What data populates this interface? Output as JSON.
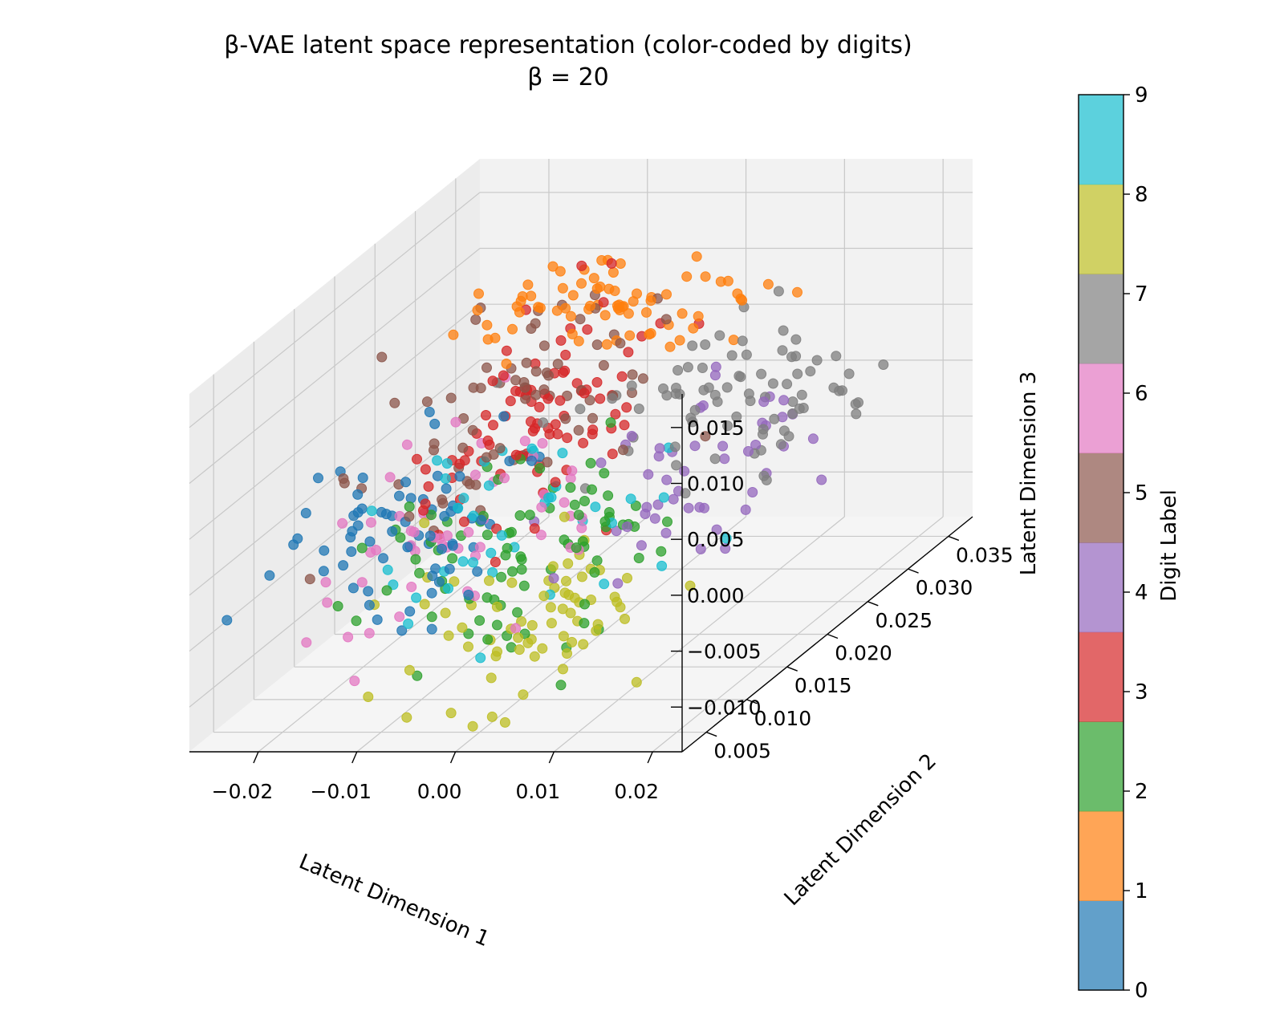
{
  "chart_data": {
    "type": "scatter",
    "projection": "3d",
    "title": "β-VAE latent space representation (color-coded by digits)",
    "subtitle": "β = 20",
    "xlabel": "Latent Dimension 1",
    "ylabel": "Latent Dimension 2",
    "zlabel": "Latent Dimension 3",
    "xlim": [
      -0.027,
      0.023
    ],
    "ylim": [
      0.002,
      0.038
    ],
    "zlim": [
      -0.014,
      0.018
    ],
    "x_ticks": [
      -0.02,
      -0.01,
      0.0,
      0.01,
      0.02
    ],
    "x_tick_labels": [
      "−0.02",
      "−0.01",
      "0.00",
      "0.01",
      "0.02"
    ],
    "y_ticks": [
      0.005,
      0.01,
      0.015,
      0.02,
      0.025,
      0.03,
      0.035
    ],
    "y_tick_labels": [
      "0.005",
      "0.010",
      "0.015",
      "0.020",
      "0.025",
      "0.030",
      "0.035"
    ],
    "z_ticks": [
      -0.01,
      -0.005,
      0.0,
      0.005,
      0.01,
      0.015
    ],
    "z_tick_labels": [
      "−0.010",
      "−0.005",
      "0.000",
      "0.005",
      "0.010",
      "0.015"
    ],
    "grid": true,
    "colorbar": {
      "label": "Digit Label",
      "range": [
        0,
        9
      ],
      "ticks": [
        0,
        1,
        2,
        3,
        4,
        5,
        6,
        7,
        8,
        9
      ],
      "tick_labels": [
        "0",
        "1",
        "2",
        "3",
        "4",
        "5",
        "6",
        "7",
        "8",
        "9"
      ],
      "colors": [
        "#1f77b4",
        "#ff7f0e",
        "#2ca02c",
        "#d62728",
        "#9467bd",
        "#8c564b",
        "#e377c2",
        "#7f7f7f",
        "#bcbd22",
        "#17becf"
      ]
    },
    "clusters": [
      {
        "digit": 0,
        "color": "#1f77b4",
        "center": [
          -0.014,
          0.012,
          -0.001
        ],
        "spread": [
          0.005,
          0.0045,
          0.003
        ],
        "count": 70
      },
      {
        "digit": 1,
        "color": "#ff7f0e",
        "center": [
          -0.003,
          0.027,
          0.012
        ],
        "spread": [
          0.007,
          0.003,
          0.0015
        ],
        "count": 75
      },
      {
        "digit": 2,
        "color": "#2ca02c",
        "center": [
          -0.004,
          0.013,
          -0.003
        ],
        "spread": [
          0.006,
          0.0055,
          0.0035
        ],
        "count": 85
      },
      {
        "digit": 3,
        "color": "#d62728",
        "center": [
          -0.006,
          0.02,
          0.005
        ],
        "spread": [
          0.005,
          0.005,
          0.004
        ],
        "count": 90
      },
      {
        "digit": 4,
        "color": "#9467bd",
        "center": [
          0.008,
          0.022,
          -0.001
        ],
        "spread": [
          0.0045,
          0.0045,
          0.003
        ],
        "count": 50
      },
      {
        "digit": 5,
        "color": "#8c564b",
        "center": [
          -0.01,
          0.02,
          0.006
        ],
        "spread": [
          0.007,
          0.006,
          0.004
        ],
        "count": 75
      },
      {
        "digit": 6,
        "color": "#e377c2",
        "center": [
          -0.012,
          0.014,
          -0.001
        ],
        "spread": [
          0.006,
          0.0055,
          0.0035
        ],
        "count": 55
      },
      {
        "digit": 7,
        "color": "#7f7f7f",
        "center": [
          0.01,
          0.026,
          0.004
        ],
        "spread": [
          0.006,
          0.0045,
          0.0035
        ],
        "count": 80
      },
      {
        "digit": 8,
        "color": "#bcbd22",
        "center": [
          0.002,
          0.011,
          -0.007
        ],
        "spread": [
          0.006,
          0.0045,
          0.003
        ],
        "count": 70
      },
      {
        "digit": 9,
        "color": "#17becf",
        "center": [
          -0.004,
          0.014,
          -0.001
        ],
        "spread": [
          0.007,
          0.006,
          0.0035
        ],
        "count": 40
      }
    ]
  }
}
